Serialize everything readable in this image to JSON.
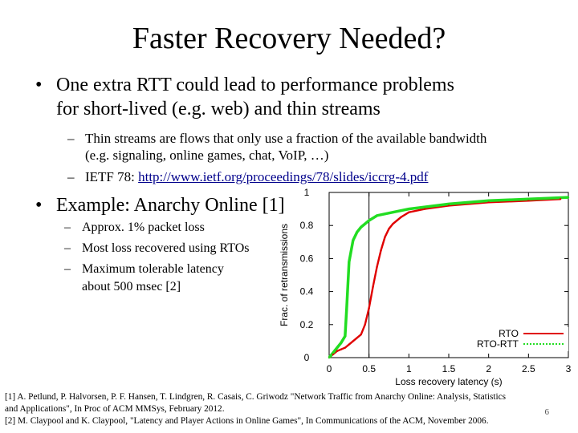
{
  "slide": {
    "title": "Faster Recovery Needed?",
    "bullet1": "One extra RTT could lead to performance problems",
    "bullet1_line2": "for short-lived (e.g. web) and thin streams",
    "sub1": "Thin streams are flows that only use a fraction of the available bandwidth",
    "sub1_line2": "(e.g. signaling, online games, chat, VoIP, …)",
    "sub2_prefix": "IETF 78: ",
    "sub2_link": "http://www.ietf.org/proceedings/78/slides/iccrg-4.pdf",
    "bullet2": "Example: Anarchy Online [1]",
    "sub3": "Approx. 1% packet loss",
    "sub4": "Most loss recovered using RTOs",
    "sub5": "Maximum tolerable latency",
    "sub5_line2": "about 500 msec [2]",
    "ref1_line1": "[1] A. Petlund, P. Halvorsen, P. F. Hansen, T. Lindgren, R. Casais, C. Griwodz \"Network Traffic from Anarchy Online: Analysis, Statistics",
    "ref1_line2": "and Applications\", In Proc of ACM MMSys,  February 2012.",
    "ref2": "[2] M. Claypool and K. Claypool, \"Latency and Player Actions in Online Games\", In Communications of the ACM, November 2006.",
    "page_number": "6",
    "bullet_glyph": "•",
    "dash_glyph": "–"
  },
  "chart_data": {
    "type": "line",
    "title": "",
    "xlabel": "Loss recovery latency (s)",
    "ylabel": "Frac. of retransmissions",
    "xlim": [
      0,
      3
    ],
    "ylim": [
      0,
      1
    ],
    "x_ticks": [
      "0",
      "0.5",
      "1",
      "1.5",
      "2",
      "2.5",
      "3"
    ],
    "y_ticks": [
      "0",
      "0.2",
      "0.4",
      "0.6",
      "0.8",
      "1"
    ],
    "reference_line_x": 0.5,
    "legend": [
      "RTO",
      "RTO-RTT"
    ],
    "series": [
      {
        "name": "RTO",
        "color": "#e00000",
        "x": [
          0,
          0.05,
          0.1,
          0.15,
          0.2,
          0.25,
          0.3,
          0.35,
          0.4,
          0.45,
          0.5,
          0.55,
          0.6,
          0.65,
          0.7,
          0.75,
          0.8,
          0.9,
          1.0,
          1.2,
          1.5,
          2.0,
          2.5,
          2.9
        ],
        "y": [
          0,
          0.02,
          0.04,
          0.05,
          0.06,
          0.08,
          0.1,
          0.12,
          0.14,
          0.2,
          0.3,
          0.43,
          0.55,
          0.65,
          0.73,
          0.78,
          0.81,
          0.85,
          0.88,
          0.9,
          0.92,
          0.94,
          0.95,
          0.96
        ]
      },
      {
        "name": "RTO-RTT",
        "color": "#22dd22",
        "x": [
          0,
          0.05,
          0.1,
          0.15,
          0.2,
          0.22,
          0.25,
          0.3,
          0.35,
          0.4,
          0.5,
          0.6,
          0.8,
          1.0,
          1.5,
          2.0,
          2.5,
          3.0
        ],
        "y": [
          0,
          0.03,
          0.06,
          0.09,
          0.13,
          0.3,
          0.58,
          0.71,
          0.76,
          0.79,
          0.83,
          0.86,
          0.88,
          0.9,
          0.93,
          0.95,
          0.96,
          0.97
        ]
      }
    ]
  }
}
